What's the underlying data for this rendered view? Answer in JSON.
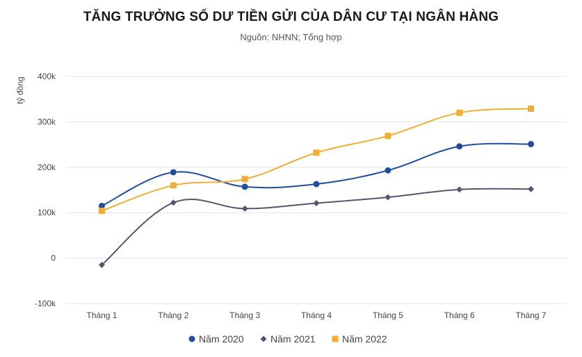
{
  "chart_data": {
    "type": "line",
    "title": "TĂNG TRƯỞNG SỐ DƯ TIỀN GỬI CỦA DÂN CƯ TẠI NGÂN HÀNG",
    "subtitle": "Nguồn: NHNN; Tổng hợp",
    "xlabel": "",
    "ylabel": "tỷ đồng",
    "categories": [
      "Tháng 1",
      "Tháng 2",
      "Tháng 3",
      "Tháng 4",
      "Tháng 5",
      "Tháng 6",
      "Tháng 7"
    ],
    "ylim": [
      -100000,
      400000
    ],
    "yticks": [
      {
        "value": 400000,
        "label": "400k"
      },
      {
        "value": 300000,
        "label": "300k"
      },
      {
        "value": 200000,
        "label": "200k"
      },
      {
        "value": 100000,
        "label": "100k"
      },
      {
        "value": 0,
        "label": "0"
      },
      {
        "value": -100000,
        "label": "-100k"
      }
    ],
    "grid": true,
    "legend_position": "bottom",
    "series": [
      {
        "name": "Năm 2020",
        "color": "#1f4e9c",
        "marker": "circle",
        "values": [
          115000,
          189000,
          157000,
          163000,
          193000,
          246000,
          251000
        ]
      },
      {
        "name": "Năm 2021",
        "color": "#5a5370",
        "marker": "diamond",
        "values": [
          -15000,
          122000,
          109000,
          121000,
          134000,
          151000,
          152000
        ]
      },
      {
        "name": "Năm 2022",
        "color": "#f2ad36",
        "marker": "square",
        "values": [
          104000,
          160000,
          174000,
          232000,
          269000,
          320000,
          329000
        ]
      }
    ]
  }
}
